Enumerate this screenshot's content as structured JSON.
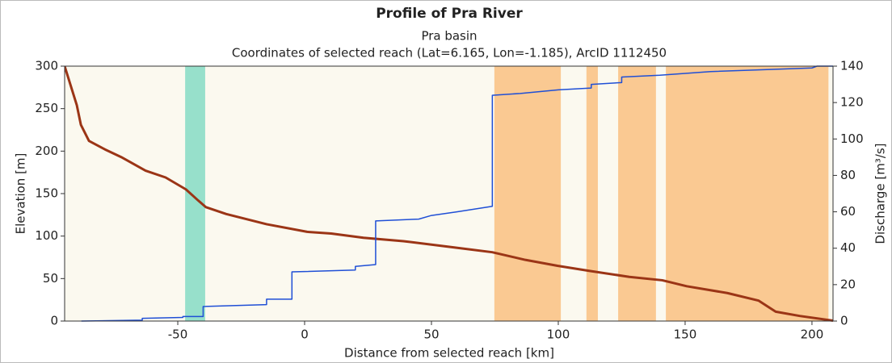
{
  "chart_data": {
    "type": "line",
    "title": "Profile of Pra River",
    "subtitle": "Pra basin",
    "subtitle2": "Coordinates of selected reach (Lat=6.165, Lon=-1.185), ArcID 1112450",
    "x_label": "Distance from selected reach [km]",
    "y_label": "Elevation [m]",
    "y2_label": "Discharge [m³/s]",
    "xlim": [
      -94.6,
      208.3
    ],
    "xticks": [
      -50,
      0,
      50,
      100,
      150,
      200
    ],
    "ylim": [
      0,
      300
    ],
    "yticks": [
      0,
      50,
      100,
      150,
      200,
      250,
      300
    ],
    "y2lim": [
      0,
      140
    ],
    "y2ticks": [
      0,
      20,
      40,
      60,
      80,
      100,
      120,
      140
    ],
    "background": "#fbf9ef",
    "shaded_regions": [
      {
        "range": [
          -47.1,
          -39.2
        ],
        "color": "#97e0cb"
      },
      {
        "range": [
          74.8,
          101
        ],
        "color": "#fac992"
      },
      {
        "range": [
          111.1,
          115.6
        ],
        "color": "#fac992"
      },
      {
        "range": [
          123.6,
          138.5
        ],
        "color": "#fac992"
      },
      {
        "range": [
          142.4,
          206.5
        ],
        "color": "#fac992"
      }
    ],
    "series": [
      {
        "name": "Elevation",
        "color": "#9b3516",
        "width": 3,
        "x": [
          -94.6,
          -89.8,
          -88.2,
          -85,
          -78.7,
          -72.3,
          -62.7,
          -54.8,
          -46.8,
          -42,
          -38.9,
          -30.9,
          -15,
          1,
          10.5,
          23.2,
          39,
          58,
          74,
          87,
          99.7,
          112.4,
          128,
          141,
          150.6,
          166.6,
          179,
          185.7,
          195.2,
          208.3
        ],
        "values": [
          300,
          254,
          231,
          212,
          202,
          193,
          177,
          169,
          155,
          142,
          134,
          126,
          114,
          105,
          103,
          98,
          94,
          87,
          81,
          72,
          65,
          59,
          52,
          48,
          41,
          33,
          24,
          11,
          6,
          0.5
        ]
      },
      {
        "name": "Discharge",
        "color": "#1f4fd6",
        "width": 1.5,
        "axis": "y2",
        "x": [
          -88,
          -64,
          -64,
          -48,
          -48,
          -40,
          -40,
          -15,
          -15,
          -5,
          -5,
          20,
          20,
          28,
          28,
          45,
          50,
          60,
          74,
          74,
          85,
          100,
          113,
          113,
          125,
          125,
          140,
          160,
          180,
          200,
          202,
          208.3
        ],
        "values": [
          0,
          0.5,
          1.5,
          2,
          2.5,
          2.5,
          8,
          9,
          12,
          12,
          27,
          28,
          30,
          31,
          55,
          56,
          58,
          60,
          63,
          124,
          125,
          127,
          128,
          130,
          131,
          134,
          135,
          137,
          138,
          139,
          140,
          140
        ]
      }
    ]
  }
}
